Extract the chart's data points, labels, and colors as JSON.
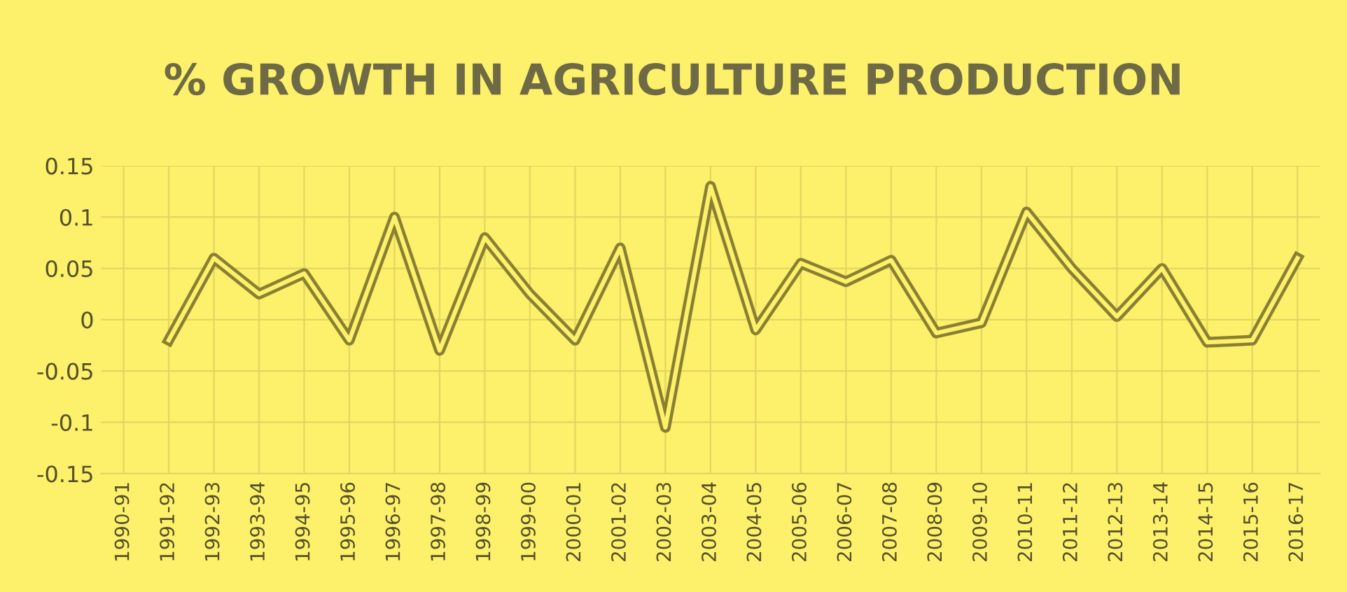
{
  "chart_data": {
    "type": "line",
    "title": "% GROWTH IN AGRICULTURE PRODUCTION",
    "categories": [
      "1990-91",
      "1991-92",
      "1992-93",
      "1993-94",
      "1994-95",
      "1995-96",
      "1996-97",
      "1997-98",
      "1998-99",
      "1999-00",
      "2000-01",
      "2001-02",
      "2002-03",
      "2003-04",
      "2004-05",
      "2005-06",
      "2006-07",
      "2007-08",
      "2008-09",
      "2009-10",
      "2010-11",
      "2011-12",
      "2012-13",
      "2013-14",
      "2014-15",
      "2015-16",
      "2016-17"
    ],
    "series": [
      {
        "color": "#8a8033",
        "values": [
          null,
          -0.02,
          0.06,
          0.025,
          0.045,
          -0.02,
          0.1,
          -0.03,
          0.08,
          0.025,
          -0.02,
          0.07,
          -0.105,
          0.13,
          -0.01,
          0.055,
          0.037,
          0.058,
          -0.013,
          -0.003,
          0.105,
          0.05,
          0.003,
          0.05,
          -0.022,
          -0.02,
          0.06
        ]
      }
    ],
    "ylim": [
      -0.15,
      0.15
    ],
    "yticks": [
      -0.15,
      -0.1,
      -0.05,
      0,
      0.05,
      0.1,
      0.15
    ],
    "grid": true,
    "marker": "none",
    "line_style": "solid"
  }
}
